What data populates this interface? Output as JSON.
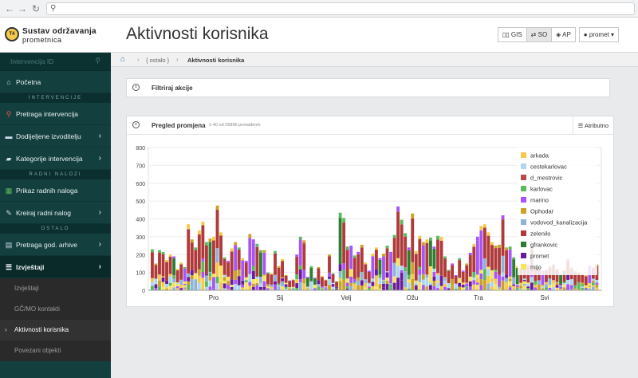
{
  "browser": {
    "back": "←",
    "forward": "→",
    "reload": "↻",
    "search_icon": "search-icon"
  },
  "header": {
    "logo_text": "T4",
    "brand_line1": "Sustav održavanja",
    "brand_line2": "prometnica",
    "page_title": "Aktivnosti korisnika",
    "buttons": [
      {
        "label": "GIS",
        "icon": "map-icon",
        "active": false
      },
      {
        "label": "SO",
        "icon": "swap-icon",
        "active": true
      },
      {
        "label": "AP",
        "icon": "layers-icon",
        "active": false
      }
    ],
    "user": {
      "label": "promet",
      "icon": "user-icon"
    }
  },
  "sidebar": {
    "search_placeholder": "Intervencija ID",
    "items": [
      {
        "type": "item",
        "label": "Početna",
        "icon": "home-icon",
        "glyph": "⌂",
        "color": "#cde",
        "arrow": false
      },
      {
        "type": "section",
        "label": "INTERVENCIJE"
      },
      {
        "type": "item",
        "label": "Pretraga intervencija",
        "icon": "search-icon",
        "glyph": "⚲",
        "color": "#e05a4a",
        "arrow": false
      },
      {
        "type": "item",
        "label": "Dodijeljene izvoditelju",
        "icon": "truck-icon",
        "glyph": "▬",
        "color": "#cde",
        "arrow": true
      },
      {
        "type": "item",
        "label": "Kategorije intervencija",
        "icon": "folder-icon",
        "glyph": "▰",
        "color": "#cde",
        "arrow": true
      },
      {
        "type": "section",
        "label": "RADNI NALOZI"
      },
      {
        "type": "item",
        "label": "Prikaz radnih naloga",
        "icon": "calendar-icon",
        "glyph": "▦",
        "color": "#5cb85c",
        "arrow": false
      },
      {
        "type": "item",
        "label": "Kreiraj radni nalog",
        "icon": "edit-icon",
        "glyph": "✎",
        "color": "#cde",
        "arrow": true
      },
      {
        "type": "section",
        "label": "OSTALO"
      },
      {
        "type": "item",
        "label": "Pretraga god. arhive",
        "icon": "archive-icon",
        "glyph": "▤",
        "color": "#cde",
        "arrow": true
      },
      {
        "type": "active",
        "label": "Izvještaji",
        "icon": "list-icon",
        "glyph": "☰",
        "color": "#fff",
        "arrow": true
      }
    ],
    "subitems": [
      {
        "label": "Izvještaji",
        "active": false
      },
      {
        "label": "GČ/MO kontakti",
        "active": false
      },
      {
        "label": "Aktivnosti korisnika",
        "active": true
      },
      {
        "label": "Povezani objekti",
        "active": false
      }
    ]
  },
  "breadcrumb": {
    "home_icon": "home-icon",
    "crumb1": "{ ostalo }",
    "crumb2": "Aktivnosti korisnika"
  },
  "filter_panel": {
    "title": "Filtriraj akcije",
    "icon": "clock-icon"
  },
  "review_panel": {
    "title": "Pregled promjena",
    "subtitle": "1-40 od 26896 pronađenih",
    "attr_button": "Atributno",
    "icon": "clock-icon"
  },
  "chart_data": {
    "type": "bar",
    "stacked": true,
    "ylim": [
      0,
      800
    ],
    "yticks": [
      0,
      100,
      200,
      300,
      400,
      500,
      600,
      700,
      800
    ],
    "x_ticks": [
      "Pro",
      "Sij",
      "Velj",
      "Ožu",
      "Tra",
      "Svi"
    ],
    "legend_position": "top-right",
    "series": [
      {
        "name": "arkada",
        "color": "#f2c94c"
      },
      {
        "name": "cestekarlovac",
        "color": "#aed6f1"
      },
      {
        "name": "d_mestrovic",
        "color": "#b84a4a"
      },
      {
        "name": "karlovac",
        "color": "#5cb85c"
      },
      {
        "name": "marino",
        "color": "#a855f7"
      },
      {
        "name": "Ophodar",
        "color": "#c9a227"
      },
      {
        "name": "vodovod_kanalizacija",
        "color": "#8fb3d6"
      },
      {
        "name": "zelenilo",
        "color": "#b03a3a"
      },
      {
        "name": "gfrankovic",
        "color": "#2e7d32"
      },
      {
        "name": "promet",
        "color": "#6a1b9a"
      },
      {
        "name": "mijo",
        "color": "#f7e35c"
      }
    ],
    "totals": [
      230,
      150,
      225,
      215,
      170,
      200,
      190,
      120,
      155,
      130,
      370,
      285,
      240,
      335,
      385,
      270,
      290,
      300,
      475,
      325,
      185,
      165,
      235,
      270,
      240,
      180,
      165,
      315,
      285,
      260,
      225,
      225,
      100,
      95,
      220,
      135,
      175,
      85,
      55,
      60,
      200,
      300,
      280,
      75,
      135,
      70,
      130,
      80,
      60,
      200,
      95,
      50,
      435,
      405,
      245,
      250,
      195,
      215,
      255,
      155,
      110,
      205,
      240,
      180,
      205,
      250,
      215,
      310,
      470,
      395,
      320,
      240,
      430,
      220,
      305,
      270,
      285,
      295,
      245,
      305,
      300,
      190,
      115,
      150,
      85,
      180,
      110,
      150,
      210,
      260,
      300,
      360,
      370,
      325,
      270,
      250,
      255,
      420,
      240,
      245,
      185,
      135,
      125,
      140,
      145,
      245,
      125,
      130,
      110,
      115,
      135,
      145,
      120,
      90,
      115,
      175,
      130,
      110,
      100,
      90,
      85,
      140,
      130,
      145
    ]
  }
}
